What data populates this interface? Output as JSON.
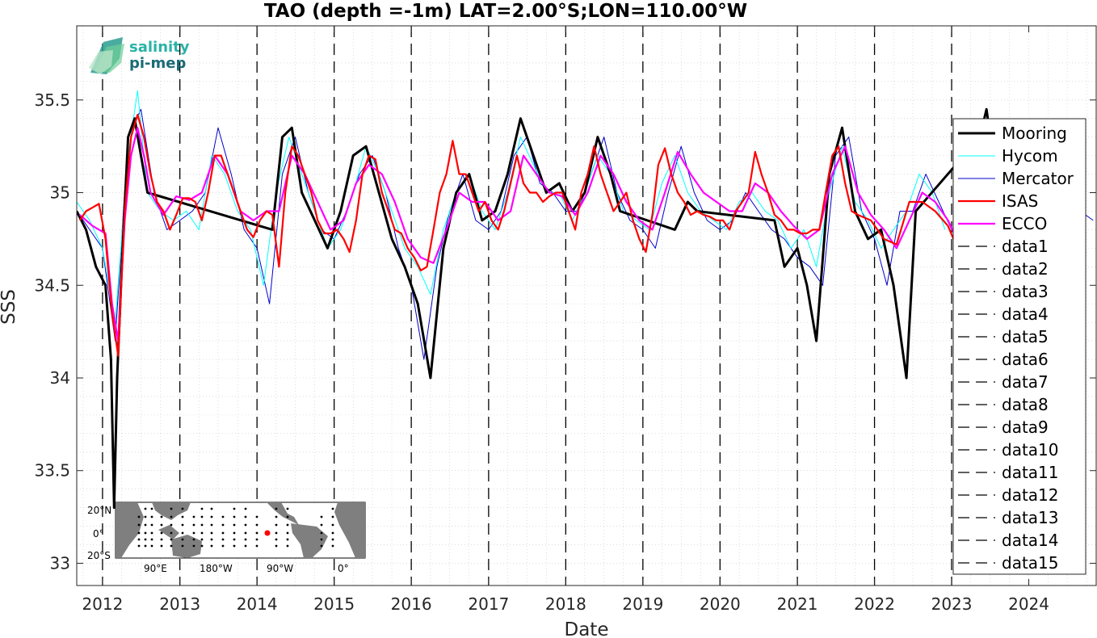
{
  "chart_data": {
    "type": "line",
    "title": "TAO (depth =-1m) LAT=2.00°S;LON=110.00°W",
    "xlabel": "Date",
    "ylabel": "SSS",
    "xlim": [
      "2011-09-01",
      "2024-11-15"
    ],
    "ylim": [
      32.88,
      35.9
    ],
    "x_ticks": [
      "2012-01-01",
      "2013-01-01",
      "2014-01-01",
      "2015-01-01",
      "2016-01-01",
      "2017-01-01",
      "2018-01-01",
      "2019-01-01",
      "2020-01-01",
      "2021-01-01",
      "2022-01-01",
      "2023-01-01",
      "2024-01-01"
    ],
    "x_tick_labels": [
      "2012",
      "2013",
      "2014",
      "2015",
      "2016",
      "2017",
      "2018",
      "2019",
      "2020",
      "2021",
      "2022",
      "2023",
      "2024"
    ],
    "y_ticks": [
      33,
      33.5,
      34,
      34.5,
      35,
      35.5
    ],
    "y_tick_labels": [
      "33",
      "33.5",
      "34",
      "34.5",
      "35",
      "35.5"
    ],
    "grid": "dotted-minor",
    "legend_position": "right",
    "legend": [
      "Mooring",
      "Hycom",
      "Mercator",
      "ISAS",
      "ECCO",
      "data1",
      "data2",
      "data3",
      "data4",
      "data5",
      "data6",
      "data7",
      "data8",
      "data9",
      "data10",
      "data11",
      "data12",
      "data13",
      "data14",
      "data15"
    ],
    "series": [
      {
        "name": "Mooring",
        "color": "#000000",
        "width": 3,
        "x": [
          "2011-09-01",
          "2011-10-15",
          "2011-12-01",
          "2012-01-15",
          "2012-02-10",
          "2012-02-25",
          "2012-03-10",
          "2012-04-01",
          "2012-05-01",
          "2012-06-01",
          "2012-07-01",
          "2012-08-01",
          "2014-03-15",
          "2014-05-01",
          "2014-06-15",
          "2014-08-01",
          "2014-10-01",
          "2014-12-01",
          "2015-02-01",
          "2015-04-01",
          "2015-06-01",
          "2015-08-01",
          "2015-10-01",
          "2015-12-01",
          "2016-02-01",
          "2016-04-01",
          "2016-06-01",
          "2016-08-01",
          "2016-10-01",
          "2016-12-01",
          "2017-02-01",
          "2017-04-01",
          "2017-06-01",
          "2017-08-01",
          "2017-10-01",
          "2017-12-01",
          "2018-02-01",
          "2018-04-01",
          "2018-06-01",
          "2018-08-01",
          "2018-09-15",
          "2019-06-01",
          "2019-08-01",
          "2019-09-15",
          "2020-09-15",
          "2020-11-01",
          "2021-01-01",
          "2021-02-15",
          "2021-04-01",
          "2021-06-01",
          "2021-08-01",
          "2021-10-01",
          "2021-12-01",
          "2022-02-01",
          "2022-04-01",
          "2022-06-01",
          "2022-07-15",
          "2023-05-15",
          "2023-06-15",
          "2023-07-15"
        ],
        "y": [
          34.9,
          34.8,
          34.6,
          34.5,
          34.1,
          33.3,
          34.0,
          34.6,
          35.3,
          35.4,
          35.2,
          35.0,
          34.8,
          35.3,
          35.35,
          35.0,
          34.85,
          34.7,
          34.9,
          35.2,
          35.25,
          35.0,
          34.75,
          34.6,
          34.4,
          34.0,
          34.7,
          35.0,
          35.1,
          34.85,
          34.9,
          35.1,
          35.4,
          35.2,
          35.0,
          35.05,
          34.9,
          35.0,
          35.3,
          35.1,
          34.9,
          34.8,
          34.95,
          34.9,
          34.85,
          34.6,
          34.7,
          34.5,
          34.2,
          35.1,
          35.35,
          34.9,
          34.75,
          34.8,
          34.5,
          34.0,
          34.9,
          35.3,
          35.45,
          35.2
        ]
      },
      {
        "name": "Hycom",
        "color": "#00ffff",
        "width": 1,
        "x": [
          "2011-09-01",
          "2011-11-01",
          "2012-01-01",
          "2012-03-01",
          "2012-05-01",
          "2012-06-15",
          "2012-08-01",
          "2012-10-01",
          "2012-12-01",
          "2013-02-01",
          "2013-04-01",
          "2013-06-01",
          "2013-08-01",
          "2013-10-01",
          "2013-12-01",
          "2014-02-01",
          "2014-04-01",
          "2014-06-01",
          "2014-08-01",
          "2014-10-01",
          "2014-12-01",
          "2015-02-01",
          "2015-04-01",
          "2015-06-01",
          "2015-08-01",
          "2015-10-01",
          "2015-12-01",
          "2016-02-01",
          "2016-04-01",
          "2016-06-01",
          "2016-08-01",
          "2016-10-01",
          "2016-12-01",
          "2017-02-01",
          "2017-04-01",
          "2017-06-01",
          "2017-08-01",
          "2017-10-01",
          "2017-12-01",
          "2018-02-01",
          "2018-04-01",
          "2018-06-01",
          "2018-08-01",
          "2018-10-01",
          "2018-12-01",
          "2019-02-01",
          "2019-04-01",
          "2019-06-01",
          "2019-08-01",
          "2019-10-01",
          "2019-12-01",
          "2020-02-01",
          "2020-04-01",
          "2020-06-01",
          "2020-08-01",
          "2020-10-01",
          "2020-12-01",
          "2021-02-01",
          "2021-04-01",
          "2021-06-01",
          "2021-08-01",
          "2021-10-01",
          "2021-12-01",
          "2022-02-01",
          "2022-04-01",
          "2022-06-01",
          "2022-08-01",
          "2022-10-01",
          "2022-12-01"
        ],
        "y": [
          34.95,
          34.85,
          34.7,
          34.3,
          35.2,
          35.55,
          35.0,
          34.9,
          34.85,
          34.9,
          34.8,
          35.2,
          35.1,
          34.9,
          34.8,
          34.5,
          35.0,
          35.3,
          35.1,
          34.9,
          34.7,
          34.8,
          35.0,
          35.25,
          35.1,
          34.9,
          34.7,
          34.6,
          34.45,
          34.8,
          35.0,
          35.1,
          34.9,
          34.8,
          35.0,
          35.3,
          35.15,
          35.0,
          35.0,
          34.85,
          35.0,
          35.2,
          35.1,
          34.9,
          34.85,
          34.8,
          35.05,
          35.2,
          35.0,
          34.9,
          34.85,
          34.8,
          34.95,
          35.0,
          34.9,
          34.85,
          34.7,
          34.8,
          34.6,
          35.0,
          35.25,
          34.95,
          34.85,
          34.7,
          34.8,
          34.9,
          35.1,
          35.0,
          34.8
        ]
      },
      {
        "name": "Mercator",
        "color": "#0000cd",
        "width": 1,
        "x": [
          "2011-09-01",
          "2011-11-01",
          "2012-01-01",
          "2012-03-01",
          "2012-05-01",
          "2012-07-01",
          "2012-09-01",
          "2012-11-01",
          "2013-01-01",
          "2013-03-01",
          "2013-05-01",
          "2013-07-01",
          "2013-09-01",
          "2013-11-01",
          "2014-01-01",
          "2014-03-01",
          "2014-05-01",
          "2014-07-01",
          "2014-09-01",
          "2014-11-01",
          "2015-01-01",
          "2015-03-01",
          "2015-05-01",
          "2015-07-01",
          "2015-09-01",
          "2015-11-01",
          "2016-01-01",
          "2016-03-01",
          "2016-05-01",
          "2016-07-01",
          "2016-09-01",
          "2016-11-01",
          "2017-01-01",
          "2017-03-01",
          "2017-05-01",
          "2017-07-01",
          "2017-09-01",
          "2017-11-01",
          "2018-01-01",
          "2018-03-01",
          "2018-05-01",
          "2018-07-01",
          "2018-09-01",
          "2018-11-01",
          "2019-01-01",
          "2019-03-01",
          "2019-05-01",
          "2019-07-01",
          "2019-09-01",
          "2019-11-01",
          "2020-01-01",
          "2020-03-01",
          "2020-05-01",
          "2020-07-01",
          "2020-09-01",
          "2020-11-01",
          "2021-01-01",
          "2021-03-01",
          "2021-05-01",
          "2021-07-01",
          "2021-09-01",
          "2021-11-01",
          "2022-01-01",
          "2022-03-01",
          "2022-05-01",
          "2022-07-01",
          "2022-09-01",
          "2022-11-01",
          "2023-01-01",
          "2023-03-01",
          "2023-05-01",
          "2023-07-01",
          "2023-09-01",
          "2023-11-01",
          "2024-01-01",
          "2024-03-01",
          "2024-05-01",
          "2024-07-01",
          "2024-09-01",
          "2024-11-01"
        ],
        "y": [
          34.9,
          34.8,
          34.7,
          34.2,
          35.3,
          35.45,
          35.0,
          34.8,
          34.85,
          34.9,
          35.0,
          35.35,
          35.1,
          34.8,
          34.7,
          34.4,
          35.1,
          35.3,
          35.0,
          34.8,
          34.75,
          34.9,
          35.1,
          35.2,
          35.0,
          34.7,
          34.5,
          34.1,
          34.6,
          34.9,
          35.1,
          34.85,
          34.8,
          34.9,
          35.2,
          35.3,
          35.05,
          35.0,
          34.9,
          34.9,
          35.1,
          35.3,
          35.0,
          34.85,
          34.8,
          34.7,
          35.0,
          35.25,
          35.0,
          34.85,
          34.8,
          34.85,
          35.0,
          34.9,
          34.8,
          34.75,
          34.65,
          34.6,
          34.5,
          35.2,
          35.3,
          34.9,
          34.75,
          34.5,
          34.9,
          34.9,
          35.1,
          34.95,
          34.8,
          34.85,
          35.2,
          35.3,
          35.0,
          35.3,
          34.95,
          34.85,
          34.9,
          35.0,
          34.9,
          34.85
        ]
      },
      {
        "name": "ISAS",
        "color": "#ff0000",
        "width": 2.2,
        "x": [
          "2011-09-15",
          "2011-10-15",
          "2011-11-15",
          "2011-12-15",
          "2012-01-15",
          "2012-02-15",
          "2012-03-15",
          "2012-04-15",
          "2012-05-15",
          "2012-06-15",
          "2012-07-15",
          "2012-08-15",
          "2012-09-15",
          "2012-10-15",
          "2012-11-15",
          "2012-12-15",
          "2013-01-15",
          "2013-02-15",
          "2013-03-15",
          "2013-04-15",
          "2013-05-15",
          "2013-06-15",
          "2013-07-15",
          "2013-08-15",
          "2013-09-15",
          "2013-10-15",
          "2013-11-15",
          "2013-12-15",
          "2014-01-15",
          "2014-02-15",
          "2014-03-15",
          "2014-04-15",
          "2014-05-15",
          "2014-06-15",
          "2014-07-15",
          "2014-08-15",
          "2014-09-15",
          "2014-10-15",
          "2014-11-15",
          "2014-12-15",
          "2015-01-15",
          "2015-02-15",
          "2015-03-15",
          "2015-04-15",
          "2015-05-15",
          "2015-06-15",
          "2015-07-15",
          "2015-08-15",
          "2015-09-15",
          "2015-10-15",
          "2015-11-15",
          "2015-12-15",
          "2016-01-15",
          "2016-02-15",
          "2016-03-15",
          "2016-04-15",
          "2016-05-15",
          "2016-06-15",
          "2016-07-15",
          "2016-08-15",
          "2016-09-15",
          "2016-10-15",
          "2016-11-15",
          "2016-12-15",
          "2017-01-15",
          "2017-02-15",
          "2017-03-15",
          "2017-04-15",
          "2017-05-15",
          "2017-06-15",
          "2017-07-15",
          "2017-08-15",
          "2017-09-15",
          "2017-10-15",
          "2017-11-15",
          "2017-12-15",
          "2018-01-15",
          "2018-02-15",
          "2018-03-15",
          "2018-04-15",
          "2018-05-15",
          "2018-06-15",
          "2018-07-15",
          "2018-08-15",
          "2018-09-15",
          "2018-10-15",
          "2018-11-15",
          "2018-12-15",
          "2019-01-15",
          "2019-02-15",
          "2019-03-15",
          "2019-04-15",
          "2019-05-15",
          "2019-06-15",
          "2019-07-15",
          "2019-08-15",
          "2019-09-15",
          "2019-10-15",
          "2019-11-15",
          "2019-12-15",
          "2020-01-15",
          "2020-02-15",
          "2020-03-15",
          "2020-04-15",
          "2020-05-15",
          "2020-06-15",
          "2020-07-15",
          "2020-08-15",
          "2020-09-15",
          "2020-10-15",
          "2020-11-15",
          "2020-12-15",
          "2021-01-15",
          "2021-02-15",
          "2021-03-15",
          "2021-04-15",
          "2021-05-15",
          "2021-06-15",
          "2021-07-15",
          "2021-08-15",
          "2021-09-15",
          "2021-10-15",
          "2021-12-15",
          "2022-02-15",
          "2022-04-15",
          "2022-06-15",
          "2022-08-15",
          "2022-10-15",
          "2022-12-15",
          "2023-02-15"
        ],
        "y": [
          34.85,
          34.9,
          34.92,
          34.94,
          34.75,
          34.35,
          34.12,
          34.9,
          35.3,
          35.42,
          35.3,
          35.1,
          34.95,
          34.9,
          34.8,
          34.88,
          34.97,
          34.97,
          34.95,
          34.85,
          35.0,
          35.2,
          35.2,
          35.1,
          35.0,
          34.9,
          34.8,
          34.76,
          34.85,
          34.9,
          34.88,
          34.6,
          35.0,
          35.25,
          35.2,
          35.1,
          35.0,
          34.85,
          34.78,
          34.78,
          34.8,
          34.75,
          34.68,
          34.85,
          35.1,
          35.2,
          35.18,
          35.0,
          34.9,
          34.8,
          34.78,
          34.7,
          34.65,
          34.58,
          34.6,
          34.8,
          35.0,
          35.1,
          35.28,
          35.1,
          35.1,
          35.0,
          34.9,
          34.95,
          34.85,
          34.8,
          34.9,
          35.05,
          35.2,
          35.05,
          35.0,
          35.0,
          34.95,
          34.98,
          35.0,
          35.0,
          34.9,
          34.8,
          35.0,
          35.1,
          35.25,
          35.1,
          35.0,
          34.9,
          34.95,
          35.0,
          34.85,
          34.75,
          34.68,
          34.88,
          35.15,
          35.24,
          35.1,
          35.0,
          34.95,
          34.88,
          34.9,
          34.88,
          34.87,
          34.85,
          34.85,
          34.8,
          34.9,
          34.95,
          35.0,
          35.22,
          35.1,
          35.0,
          34.88,
          34.85,
          34.8,
          34.8,
          34.78,
          34.78,
          34.8,
          34.8,
          35.0,
          35.2,
          35.25,
          35.05,
          34.9,
          34.88,
          34.85,
          34.75,
          34.72,
          34.95,
          34.95,
          34.9,
          34.82,
          34.65
        ]
      },
      {
        "name": "ECCO",
        "color": "#ff00ff",
        "width": 2.2,
        "x": [
          "2011-09-15",
          "2011-11-15",
          "2012-01-15",
          "2012-02-15",
          "2012-03-15",
          "2012-04-15",
          "2012-05-15",
          "2012-06-15",
          "2012-07-15",
          "2012-08-15",
          "2012-10-15",
          "2012-12-15",
          "2013-02-15",
          "2013-04-15",
          "2013-06-15",
          "2013-08-15",
          "2013-10-15",
          "2013-12-15",
          "2014-02-15",
          "2014-04-15",
          "2014-06-15",
          "2014-08-15",
          "2014-10-15",
          "2014-12-15",
          "2015-02-15",
          "2015-04-15",
          "2015-06-15",
          "2015-08-15",
          "2015-10-15",
          "2015-12-15",
          "2016-02-15",
          "2016-04-15",
          "2016-06-15",
          "2016-08-15",
          "2016-10-15",
          "2016-12-15",
          "2017-02-15",
          "2017-04-15",
          "2017-06-15",
          "2017-08-15",
          "2017-10-15",
          "2017-12-15",
          "2018-02-15",
          "2018-04-15",
          "2018-06-15",
          "2018-08-15",
          "2018-10-15",
          "2018-12-15",
          "2019-02-15",
          "2019-04-15",
          "2019-06-15",
          "2019-08-15",
          "2019-10-15",
          "2019-12-15",
          "2020-02-15",
          "2020-04-15",
          "2020-06-15",
          "2020-08-15",
          "2020-10-15",
          "2020-12-15",
          "2021-02-15",
          "2021-04-15",
          "2021-06-15",
          "2021-08-15",
          "2021-10-15",
          "2021-12-15",
          "2022-02-15",
          "2022-04-15",
          "2022-06-15",
          "2022-08-15",
          "2022-10-15",
          "2022-12-15",
          "2023-02-15"
        ],
        "y": [
          34.88,
          34.82,
          34.78,
          34.4,
          34.2,
          34.85,
          35.2,
          35.35,
          35.2,
          35.0,
          34.88,
          34.98,
          34.96,
          35.0,
          35.2,
          35.1,
          34.9,
          34.85,
          34.9,
          34.9,
          35.2,
          35.1,
          34.95,
          34.8,
          34.85,
          35.05,
          35.15,
          35.1,
          34.95,
          34.75,
          34.65,
          34.62,
          34.8,
          35.0,
          34.95,
          34.95,
          34.85,
          34.9,
          35.2,
          35.1,
          35.0,
          34.98,
          34.88,
          35.0,
          35.2,
          35.1,
          34.95,
          34.85,
          34.8,
          35.0,
          35.22,
          35.1,
          35.0,
          34.95,
          34.9,
          34.9,
          35.05,
          35.0,
          34.9,
          34.82,
          34.75,
          34.8,
          35.1,
          35.25,
          35.0,
          34.88,
          34.8,
          34.7,
          34.85,
          35.0,
          34.95,
          34.85,
          34.7
        ]
      }
    ]
  },
  "logo": {
    "line1": "salinity",
    "line2": "pi-mep"
  },
  "inset_map": {
    "y_labels": [
      "20°N",
      "0°",
      "20°S"
    ],
    "x_labels": [
      "90°E",
      "180°W",
      "90°W",
      "0°"
    ],
    "ocean_color": "#ffffff",
    "land_color": "#7f7f7f",
    "marker_color": "#ff0000"
  }
}
